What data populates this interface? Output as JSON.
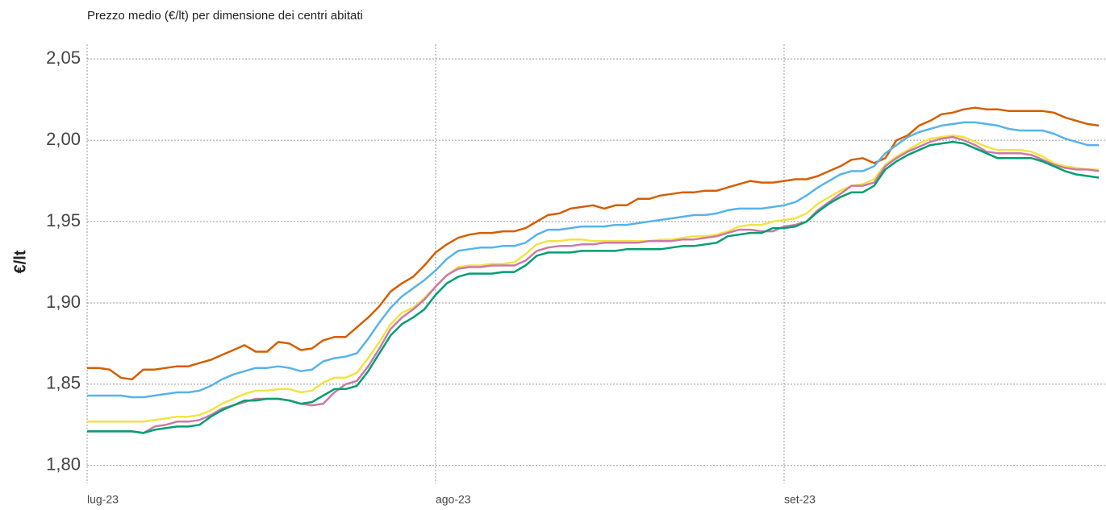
{
  "chart_data": {
    "type": "line",
    "title": "Prezzo medio (€/lt) per dimensione dei centri abitati",
    "y_label": "€/lt",
    "categories": [
      "lug-23",
      null,
      null,
      null,
      null,
      null,
      null,
      null,
      null,
      null,
      null,
      null,
      null,
      null,
      null,
      null,
      null,
      null,
      null,
      null,
      null,
      null,
      null,
      null,
      null,
      null,
      null,
      null,
      null,
      null,
      null,
      "ago-23",
      null,
      null,
      null,
      null,
      null,
      null,
      null,
      null,
      null,
      null,
      null,
      null,
      null,
      null,
      null,
      null,
      null,
      null,
      null,
      null,
      null,
      null,
      null,
      null,
      null,
      null,
      null,
      null,
      null,
      null,
      "set-23",
      null,
      null,
      null,
      null,
      null,
      null,
      null,
      null,
      null,
      null,
      null,
      null,
      null,
      null,
      null,
      null,
      null,
      null,
      null,
      null,
      null,
      null,
      null,
      null,
      null,
      null,
      null,
      null
    ],
    "ylim": [
      1.789,
      2.059
    ],
    "yticks": [
      {
        "value": 1.8,
        "label": "1,80"
      },
      {
        "value": 1.85,
        "label": "1,85"
      },
      {
        "value": 1.9,
        "label": "1,90"
      },
      {
        "value": 1.95,
        "label": "1,95"
      },
      {
        "value": 2.0,
        "label": "2,00"
      },
      {
        "value": 2.05,
        "label": "2,05"
      }
    ],
    "grid": true,
    "series": [
      {
        "color": "#d55e00",
        "values": [
          1.86,
          1.86,
          1.859,
          1.854,
          1.853,
          1.859,
          1.859,
          1.86,
          1.861,
          1.861,
          1.863,
          1.865,
          1.868,
          1.871,
          1.874,
          1.87,
          1.87,
          1.876,
          1.875,
          1.871,
          1.872,
          1.877,
          1.879,
          1.879,
          1.885,
          1.891,
          1.898,
          1.907,
          1.912,
          1.916,
          1.923,
          1.931,
          1.936,
          1.94,
          1.942,
          1.943,
          1.943,
          1.944,
          1.944,
          1.946,
          1.95,
          1.954,
          1.955,
          1.958,
          1.959,
          1.96,
          1.958,
          1.96,
          1.96,
          1.964,
          1.964,
          1.966,
          1.967,
          1.968,
          1.968,
          1.969,
          1.969,
          1.971,
          1.973,
          1.975,
          1.974,
          1.974,
          1.975,
          1.976,
          1.976,
          1.978,
          1.981,
          1.984,
          1.988,
          1.989,
          1.986,
          1.989,
          2.0,
          2.003,
          2.009,
          2.012,
          2.016,
          2.017,
          2.019,
          2.02,
          2.019,
          2.019,
          2.018,
          2.018,
          2.018,
          2.018,
          2.017,
          2.014,
          2.012,
          2.01,
          2.009
        ]
      },
      {
        "color": "#56b4e9",
        "values": [
          1.843,
          1.843,
          1.843,
          1.843,
          1.842,
          1.842,
          1.843,
          1.844,
          1.845,
          1.845,
          1.846,
          1.849,
          1.853,
          1.856,
          1.858,
          1.86,
          1.86,
          1.861,
          1.86,
          1.858,
          1.859,
          1.864,
          1.866,
          1.867,
          1.869,
          1.878,
          1.888,
          1.897,
          1.904,
          1.909,
          1.914,
          1.92,
          1.927,
          1.932,
          1.933,
          1.934,
          1.934,
          1.935,
          1.935,
          1.937,
          1.942,
          1.945,
          1.945,
          1.946,
          1.947,
          1.947,
          1.947,
          1.948,
          1.948,
          1.949,
          1.95,
          1.951,
          1.952,
          1.953,
          1.954,
          1.954,
          1.955,
          1.957,
          1.958,
          1.958,
          1.958,
          1.959,
          1.96,
          1.962,
          1.966,
          1.971,
          1.975,
          1.979,
          1.981,
          1.981,
          1.984,
          1.992,
          1.997,
          2.002,
          2.005,
          2.007,
          2.009,
          2.01,
          2.011,
          2.011,
          2.01,
          2.009,
          2.007,
          2.006,
          2.006,
          2.006,
          2.004,
          2.001,
          1.999,
          1.997,
          1.997
        ]
      },
      {
        "color": "#f0e442",
        "values": [
          1.827,
          1.827,
          1.827,
          1.827,
          1.827,
          1.827,
          1.828,
          1.829,
          1.83,
          1.83,
          1.831,
          1.834,
          1.838,
          1.841,
          1.844,
          1.846,
          1.846,
          1.847,
          1.847,
          1.845,
          1.846,
          1.851,
          1.854,
          1.854,
          1.857,
          1.866,
          1.876,
          1.887,
          1.894,
          1.897,
          1.903,
          1.91,
          1.917,
          1.922,
          1.923,
          1.923,
          1.924,
          1.924,
          1.925,
          1.93,
          1.936,
          1.938,
          1.938,
          1.939,
          1.939,
          1.938,
          1.938,
          1.938,
          1.938,
          1.938,
          1.938,
          1.939,
          1.939,
          1.94,
          1.941,
          1.941,
          1.942,
          1.944,
          1.947,
          1.948,
          1.948,
          1.95,
          1.951,
          1.952,
          1.955,
          1.961,
          1.965,
          1.969,
          1.972,
          1.973,
          1.976,
          1.985,
          1.99,
          1.994,
          1.998,
          2.001,
          2.002,
          2.003,
          2.002,
          1.999,
          1.996,
          1.994,
          1.994,
          1.994,
          1.993,
          1.99,
          1.986,
          1.984,
          1.983,
          1.982,
          1.982
        ]
      },
      {
        "color": "#cc79a7",
        "values": [
          1.821,
          1.821,
          1.821,
          1.821,
          1.821,
          1.82,
          1.824,
          1.825,
          1.827,
          1.827,
          1.828,
          1.831,
          1.835,
          1.837,
          1.839,
          1.841,
          1.841,
          1.841,
          1.84,
          1.838,
          1.837,
          1.838,
          1.845,
          1.85,
          1.852,
          1.861,
          1.872,
          1.884,
          1.891,
          1.896,
          1.902,
          1.91,
          1.917,
          1.921,
          1.922,
          1.922,
          1.923,
          1.923,
          1.923,
          1.926,
          1.932,
          1.934,
          1.935,
          1.935,
          1.936,
          1.936,
          1.937,
          1.937,
          1.937,
          1.937,
          1.938,
          1.938,
          1.938,
          1.939,
          1.939,
          1.94,
          1.941,
          1.943,
          1.945,
          1.945,
          1.944,
          1.944,
          1.947,
          1.948,
          1.95,
          1.957,
          1.962,
          1.967,
          1.972,
          1.972,
          1.974,
          1.984,
          1.989,
          1.993,
          1.996,
          1.999,
          2.001,
          2.002,
          2.0,
          1.997,
          1.993,
          1.992,
          1.992,
          1.992,
          1.991,
          1.988,
          1.985,
          1.983,
          1.982,
          1.982,
          1.981
        ]
      },
      {
        "color": "#009e73",
        "values": [
          1.821,
          1.821,
          1.821,
          1.821,
          1.821,
          1.82,
          1.822,
          1.823,
          1.824,
          1.824,
          1.825,
          1.83,
          1.834,
          1.837,
          1.84,
          1.84,
          1.841,
          1.841,
          1.84,
          1.838,
          1.839,
          1.843,
          1.847,
          1.847,
          1.849,
          1.858,
          1.869,
          1.88,
          1.887,
          1.891,
          1.896,
          1.905,
          1.912,
          1.916,
          1.918,
          1.918,
          1.918,
          1.919,
          1.919,
          1.923,
          1.929,
          1.931,
          1.931,
          1.931,
          1.932,
          1.932,
          1.932,
          1.932,
          1.933,
          1.933,
          1.933,
          1.933,
          1.934,
          1.935,
          1.935,
          1.936,
          1.937,
          1.941,
          1.942,
          1.943,
          1.943,
          1.946,
          1.946,
          1.947,
          1.95,
          1.956,
          1.961,
          1.965,
          1.968,
          1.968,
          1.972,
          1.982,
          1.987,
          1.991,
          1.994,
          1.997,
          1.998,
          1.999,
          1.998,
          1.995,
          1.992,
          1.989,
          1.989,
          1.989,
          1.989,
          1.987,
          1.984,
          1.981,
          1.979,
          1.978,
          1.977
        ]
      }
    ]
  }
}
